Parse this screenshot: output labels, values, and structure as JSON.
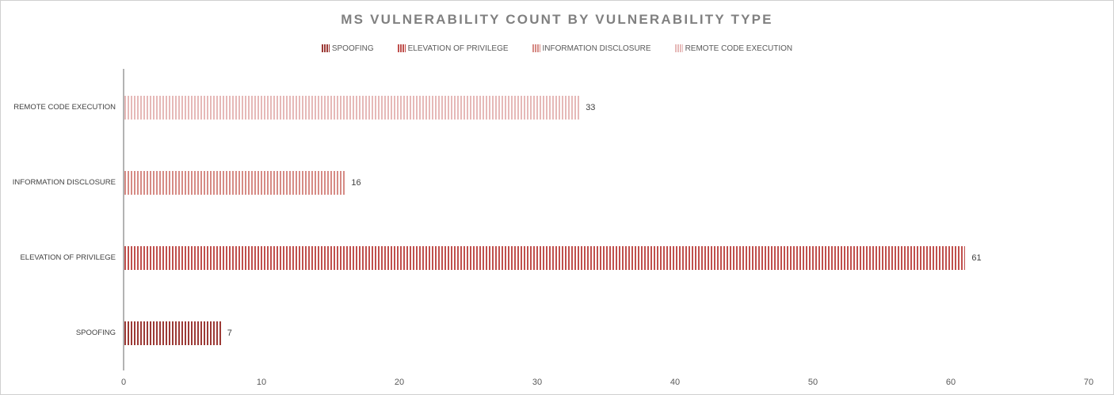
{
  "chart_data": {
    "type": "bar",
    "orientation": "horizontal",
    "title": "MS VULNERABILITY COUNT BY VULNERABILITY TYPE",
    "categories": [
      "SPOOFING",
      "ELEVATION OF PRIVILEGE",
      "INFORMATION DISCLOSURE",
      "REMOTE CODE EXECUTION"
    ],
    "values": [
      7,
      61,
      16,
      33
    ],
    "colors": [
      "#9c3a36",
      "#c0504d",
      "#d68b85",
      "#e6b9b8"
    ],
    "bar_pattern": "vertical-stripes",
    "category_order_top_to_bottom": [
      "REMOTE CODE EXECUTION",
      "INFORMATION DISCLOSURE",
      "ELEVATION OF PRIVILEGE",
      "SPOOFING"
    ],
    "legend": [
      "SPOOFING",
      "ELEVATION OF PRIVILEGE",
      "INFORMATION DISCLOSURE",
      "REMOTE CODE EXECUTION"
    ],
    "legend_position": "top",
    "xlim": [
      0,
      70
    ],
    "x_ticks": [
      "0",
      "10",
      "20",
      "30",
      "40",
      "50",
      "60",
      "70"
    ],
    "grid": false,
    "value_labels": [
      "7",
      "61",
      "16",
      "33"
    ]
  },
  "style_colors": {
    "title_text": "#808080",
    "legend_text": "#595959",
    "axis_line": "#b3b3b3",
    "tick_label": "#595959",
    "category_label": "#404040",
    "value_label": "#404040",
    "outer_border": "#d0d0d0",
    "background": "#ffffff"
  }
}
